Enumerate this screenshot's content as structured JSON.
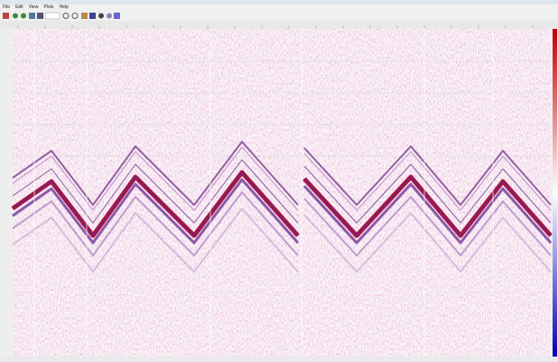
{
  "menu": {
    "items": [
      "File",
      "Edit",
      "View",
      "Plots",
      "Help"
    ]
  }
}
